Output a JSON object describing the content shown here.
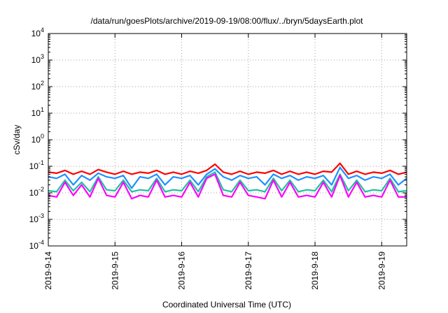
{
  "chart_data": {
    "type": "line",
    "title": "/data/run/goesPlots/archive/2019-09-19/08:00/flux/../bryn/5daysEarth.plot",
    "xlabel": "Coordinated Universal Time (UTC)",
    "ylabel": "cSv/day",
    "yscale": "log",
    "ylim": [
      0.0001,
      10000
    ],
    "y_ticks": [
      {
        "base": "10",
        "exp": "-4"
      },
      {
        "base": "10",
        "exp": "-3"
      },
      {
        "base": "10",
        "exp": "-2"
      },
      {
        "base": "10",
        "exp": "-1"
      },
      {
        "base": "10",
        "exp": "0"
      },
      {
        "base": "10",
        "exp": "1"
      },
      {
        "base": "10",
        "exp": "2"
      },
      {
        "base": "10",
        "exp": "3"
      },
      {
        "base": "10",
        "exp": "4"
      }
    ],
    "xlim": [
      "2019-09-14 00:00",
      "2019-09-19 09:00"
    ],
    "x_ticks": [
      "2019-9-14",
      "2019-9-15",
      "2019-9-16",
      "2019-9-17",
      "2019-9-18",
      "2019-9-19"
    ],
    "grid": true,
    "legend": "none",
    "series": [
      {
        "color": "#ff0000",
        "x": [
          "2019-09-14 00:00",
          "2019-09-14 03:00",
          "2019-09-14 06:00",
          "2019-09-14 09:00",
          "2019-09-14 12:00",
          "2019-09-14 15:00",
          "2019-09-14 18:00",
          "2019-09-14 21:00",
          "2019-09-15 00:00",
          "2019-09-15 03:00",
          "2019-09-15 06:00",
          "2019-09-15 09:00",
          "2019-09-15 12:00",
          "2019-09-15 15:00",
          "2019-09-15 18:00",
          "2019-09-15 21:00",
          "2019-09-16 00:00",
          "2019-09-16 03:00",
          "2019-09-16 06:00",
          "2019-09-16 09:00",
          "2019-09-16 12:00",
          "2019-09-16 15:00",
          "2019-09-16 18:00",
          "2019-09-16 21:00",
          "2019-09-17 00:00",
          "2019-09-17 03:00",
          "2019-09-17 06:00",
          "2019-09-17 09:00",
          "2019-09-17 12:00",
          "2019-09-17 15:00",
          "2019-09-17 18:00",
          "2019-09-17 21:00",
          "2019-09-18 00:00",
          "2019-09-18 03:00",
          "2019-09-18 06:00",
          "2019-09-18 09:00",
          "2019-09-18 12:00",
          "2019-09-18 15:00",
          "2019-09-18 18:00",
          "2019-09-18 21:00",
          "2019-09-19 00:00",
          "2019-09-19 03:00",
          "2019-09-19 06:00",
          "2019-09-19 09:00"
        ],
        "values": [
          0.06,
          0.055,
          0.07,
          0.05,
          0.065,
          0.05,
          0.075,
          0.06,
          0.05,
          0.065,
          0.05,
          0.06,
          0.055,
          0.07,
          0.05,
          0.06,
          0.05,
          0.065,
          0.055,
          0.07,
          0.12,
          0.06,
          0.05,
          0.065,
          0.05,
          0.06,
          0.055,
          0.07,
          0.05,
          0.065,
          0.05,
          0.06,
          0.05,
          0.065,
          0.06,
          0.13,
          0.05,
          0.065,
          0.05,
          0.06,
          0.055,
          0.07,
          0.05,
          0.06
        ]
      },
      {
        "color": "#1e90ff",
        "x": [
          "2019-09-14 00:00",
          "2019-09-14 03:00",
          "2019-09-14 06:00",
          "2019-09-14 09:00",
          "2019-09-14 12:00",
          "2019-09-14 15:00",
          "2019-09-14 18:00",
          "2019-09-14 21:00",
          "2019-09-15 00:00",
          "2019-09-15 03:00",
          "2019-09-15 06:00",
          "2019-09-15 09:00",
          "2019-09-15 12:00",
          "2019-09-15 15:00",
          "2019-09-15 18:00",
          "2019-09-15 21:00",
          "2019-09-16 00:00",
          "2019-09-16 03:00",
          "2019-09-16 06:00",
          "2019-09-16 09:00",
          "2019-09-16 12:00",
          "2019-09-16 15:00",
          "2019-09-16 18:00",
          "2019-09-16 21:00",
          "2019-09-17 00:00",
          "2019-09-17 03:00",
          "2019-09-17 06:00",
          "2019-09-17 09:00",
          "2019-09-17 12:00",
          "2019-09-17 15:00",
          "2019-09-17 18:00",
          "2019-09-17 21:00",
          "2019-09-18 00:00",
          "2019-09-18 03:00",
          "2019-09-18 06:00",
          "2019-09-18 09:00",
          "2019-09-18 12:00",
          "2019-09-18 15:00",
          "2019-09-18 18:00",
          "2019-09-18 21:00",
          "2019-09-19 00:00",
          "2019-09-19 03:00",
          "2019-09-19 06:00",
          "2019-09-19 09:00"
        ],
        "values": [
          0.04,
          0.035,
          0.05,
          0.02,
          0.045,
          0.03,
          0.055,
          0.04,
          0.035,
          0.045,
          0.015,
          0.04,
          0.035,
          0.05,
          0.02,
          0.04,
          0.035,
          0.045,
          0.02,
          0.05,
          0.08,
          0.04,
          0.03,
          0.045,
          0.035,
          0.04,
          0.02,
          0.05,
          0.035,
          0.045,
          0.03,
          0.04,
          0.035,
          0.045,
          0.02,
          0.09,
          0.035,
          0.045,
          0.03,
          0.04,
          0.035,
          0.05,
          0.02,
          0.035
        ]
      },
      {
        "color": "#20c0a0",
        "x": [
          "2019-09-14 00:00",
          "2019-09-14 03:00",
          "2019-09-14 06:00",
          "2019-09-14 09:00",
          "2019-09-14 12:00",
          "2019-09-14 15:00",
          "2019-09-14 18:00",
          "2019-09-14 21:00",
          "2019-09-15 00:00",
          "2019-09-15 03:00",
          "2019-09-15 06:00",
          "2019-09-15 09:00",
          "2019-09-15 12:00",
          "2019-09-15 15:00",
          "2019-09-15 18:00",
          "2019-09-15 21:00",
          "2019-09-16 00:00",
          "2019-09-16 03:00",
          "2019-09-16 06:00",
          "2019-09-16 09:00",
          "2019-09-16 12:00",
          "2019-09-16 15:00",
          "2019-09-16 18:00",
          "2019-09-16 21:00",
          "2019-09-17 00:00",
          "2019-09-17 03:00",
          "2019-09-17 06:00",
          "2019-09-17 09:00",
          "2019-09-17 12:00",
          "2019-09-17 15:00",
          "2019-09-17 18:00",
          "2019-09-17 21:00",
          "2019-09-18 00:00",
          "2019-09-18 03:00",
          "2019-09-18 06:00",
          "2019-09-18 09:00",
          "2019-09-18 12:00",
          "2019-09-18 15:00",
          "2019-09-18 18:00",
          "2019-09-18 21:00",
          "2019-09-19 00:00",
          "2019-09-19 03:00",
          "2019-09-19 06:00",
          "2019-09-19 09:00"
        ],
        "values": [
          0.012,
          0.011,
          0.03,
          0.012,
          0.025,
          0.011,
          0.04,
          0.013,
          0.012,
          0.03,
          0.011,
          0.013,
          0.012,
          0.035,
          0.011,
          0.013,
          0.012,
          0.03,
          0.011,
          0.04,
          0.06,
          0.013,
          0.011,
          0.03,
          0.012,
          0.013,
          0.011,
          0.035,
          0.012,
          0.03,
          0.011,
          0.013,
          0.012,
          0.03,
          0.011,
          0.05,
          0.012,
          0.03,
          0.011,
          0.013,
          0.012,
          0.035,
          0.011,
          0.012
        ]
      },
      {
        "color": "#ff00ff",
        "x": [
          "2019-09-14 00:00",
          "2019-09-14 03:00",
          "2019-09-14 06:00",
          "2019-09-14 09:00",
          "2019-09-14 12:00",
          "2019-09-14 15:00",
          "2019-09-14 18:00",
          "2019-09-14 21:00",
          "2019-09-15 00:00",
          "2019-09-15 03:00",
          "2019-09-15 06:00",
          "2019-09-15 09:00",
          "2019-09-15 12:00",
          "2019-09-15 15:00",
          "2019-09-15 18:00",
          "2019-09-15 21:00",
          "2019-09-16 00:00",
          "2019-09-16 03:00",
          "2019-09-16 06:00",
          "2019-09-16 09:00",
          "2019-09-16 12:00",
          "2019-09-16 15:00",
          "2019-09-16 18:00",
          "2019-09-16 21:00",
          "2019-09-17 00:00",
          "2019-09-17 03:00",
          "2019-09-17 06:00",
          "2019-09-17 09:00",
          "2019-09-17 12:00",
          "2019-09-17 15:00",
          "2019-09-17 18:00",
          "2019-09-17 21:00",
          "2019-09-18 00:00",
          "2019-09-18 03:00",
          "2019-09-18 06:00",
          "2019-09-18 09:00",
          "2019-09-18 12:00",
          "2019-09-18 15:00",
          "2019-09-18 18:00",
          "2019-09-18 21:00",
          "2019-09-19 00:00",
          "2019-09-19 03:00",
          "2019-09-19 06:00",
          "2019-09-19 09:00"
        ],
        "values": [
          0.008,
          0.007,
          0.025,
          0.008,
          0.02,
          0.007,
          0.035,
          0.008,
          0.007,
          0.025,
          0.006,
          0.008,
          0.007,
          0.03,
          0.007,
          0.008,
          0.007,
          0.025,
          0.007,
          0.035,
          0.05,
          0.008,
          0.007,
          0.025,
          0.008,
          0.007,
          0.006,
          0.03,
          0.007,
          0.025,
          0.007,
          0.008,
          0.007,
          0.025,
          0.007,
          0.045,
          0.007,
          0.025,
          0.007,
          0.008,
          0.007,
          0.03,
          0.007,
          0.007
        ]
      }
    ]
  }
}
